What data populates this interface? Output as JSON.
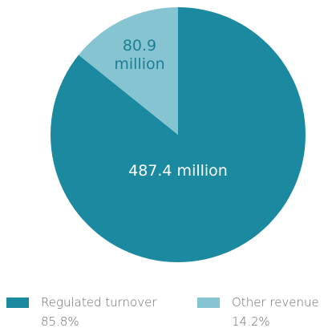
{
  "chart_data": {
    "type": "pie",
    "slices": [
      {
        "name": "Regulated turnover",
        "value": 487.4,
        "value_label": "487.4 million",
        "percent_label": "85.8%",
        "color": "#1b8aa0"
      },
      {
        "name": "Other revenue",
        "value": 80.9,
        "value_label": "80.9 million",
        "value_label_lines": [
          "80.9",
          "million"
        ],
        "percent_label": "14.2%",
        "color": "#86c4d2"
      }
    ],
    "start_angle": "12 o'clock",
    "legend_position": "bottom"
  }
}
